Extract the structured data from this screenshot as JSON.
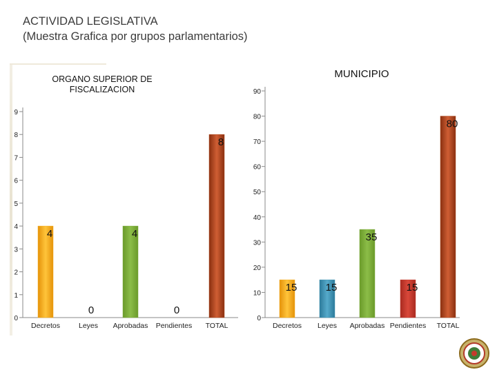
{
  "slide": {
    "title_line1": "ACTIVIDAD LEGISLATIVA",
    "title_line2": "(Muestra Grafica por grupos parlamentarios)"
  },
  "colors": {
    "decretos": "#f5ad1a",
    "leyes": "#3e92b2",
    "aprobadas": "#7cab3a",
    "pendientes": "#c53a2c",
    "total": "#b04a1e"
  },
  "chart_data": [
    {
      "type": "bar",
      "title": "ORGANO SUPERIOR DE FISCALIZACION",
      "categories": [
        "Decretos",
        "Leyes",
        "Aprobadas",
        "Pendientes",
        "TOTAL"
      ],
      "values": [
        4,
        0,
        4,
        0,
        8
      ],
      "data_labels": [
        "4",
        "0",
        "4",
        "0",
        "8"
      ],
      "yticks": [
        "0",
        "1",
        "2",
        "3",
        "4",
        "5",
        "6",
        "7",
        "8",
        "9"
      ],
      "ylim": [
        0,
        9
      ],
      "grid": false,
      "xlabel": "",
      "ylabel": ""
    },
    {
      "type": "bar",
      "title": "MUNICIPIO",
      "categories": [
        "Decretos",
        "Leyes",
        "Aprobadas",
        "Pendientes",
        "TOTAL"
      ],
      "values": [
        15,
        15,
        35,
        15,
        80
      ],
      "data_labels": [
        "15",
        "15",
        "35",
        "15",
        "80"
      ],
      "yticks": [
        "0",
        "10",
        "20",
        "30",
        "40",
        "50",
        "60",
        "70",
        "80",
        "90"
      ],
      "ylim": [
        0,
        90
      ],
      "grid": false,
      "xlabel": "",
      "ylabel": ""
    }
  ]
}
